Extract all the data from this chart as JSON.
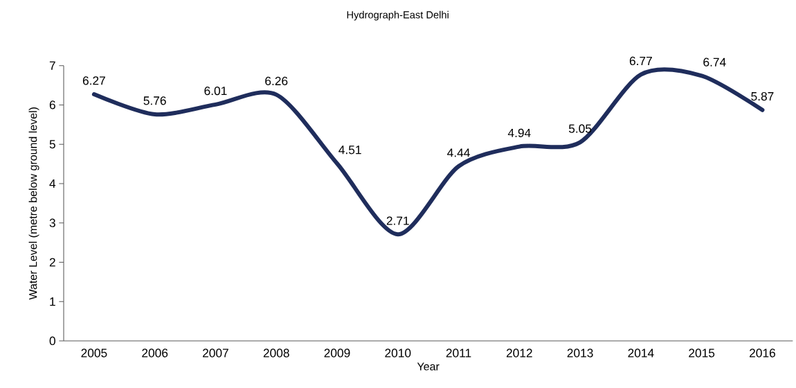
{
  "chart_data": {
    "type": "line",
    "title": "Hydrograph-East Delhi",
    "xlabel": "Year",
    "ylabel": "Water Level (metre below ground level)",
    "categories": [
      "2005",
      "2006",
      "2007",
      "2008",
      "2009",
      "2010",
      "2011",
      "2012",
      "2013",
      "2014",
      "2015",
      "2016"
    ],
    "values": [
      6.27,
      5.76,
      6.01,
      6.26,
      4.51,
      2.71,
      4.44,
      4.94,
      5.05,
      6.77,
      6.74,
      5.87
    ],
    "color": "#1f2d5c",
    "ylim": [
      0,
      7
    ],
    "yticks": [
      0,
      1,
      2,
      3,
      4,
      5,
      6,
      7
    ],
    "data_labels": true,
    "grid": false,
    "marker": "none",
    "line_style": "solid"
  }
}
